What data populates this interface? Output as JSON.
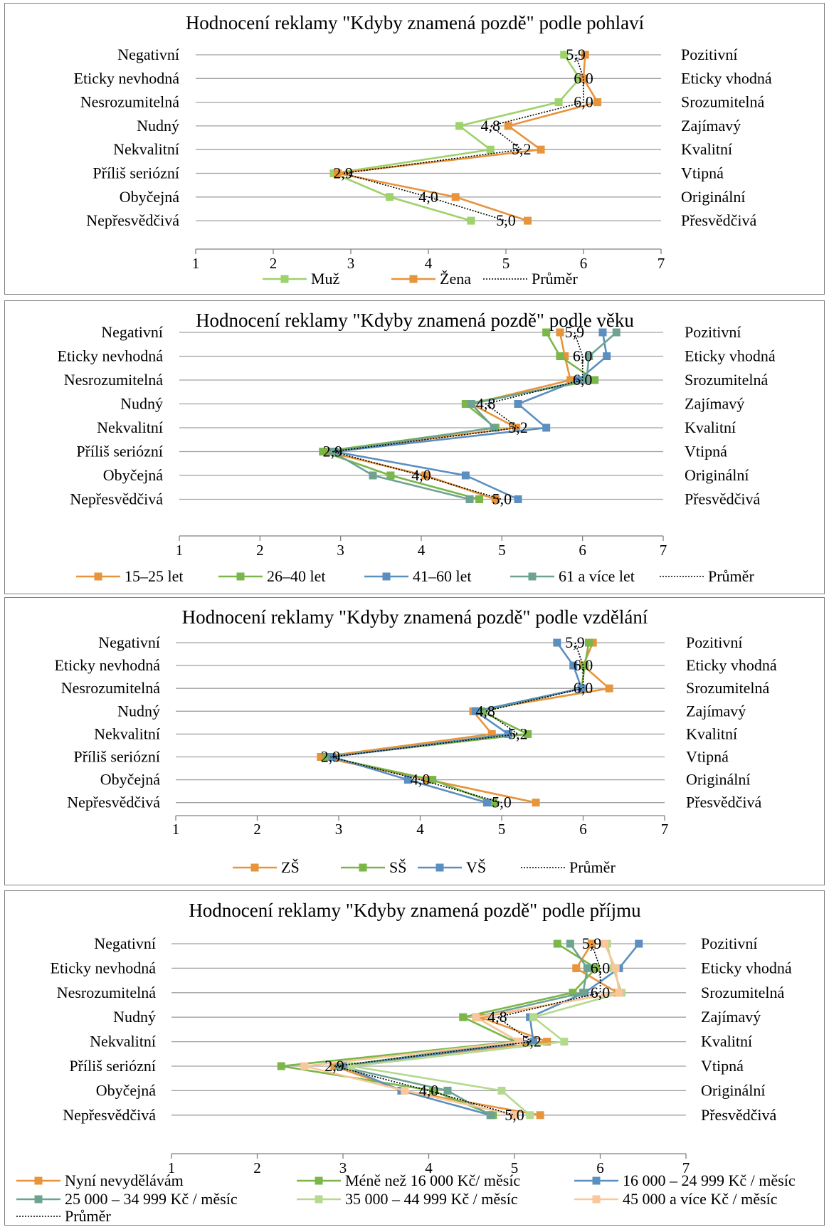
{
  "colors": {
    "orange": "#E7943A",
    "green": "#7AB648",
    "blue": "#5B8FC0",
    "teal": "#6FA391",
    "lightgreen": "#B5D98E",
    "peach": "#F9C79A",
    "lightgreen2": "#9ED26A",
    "grid": "#a0a0a0",
    "mean": "#000000"
  },
  "chart_data": [
    {
      "type": "line",
      "title": "Hodnocení reklamy \"Kdyby znamená pozdě\" podle pohlaví",
      "left_labels": [
        "Negativní",
        "Eticky nevhodná",
        "Nesrozumitelná",
        "Nudný",
        "Nekvalitní",
        "Příliš seriózní",
        "Obyčejná",
        "Nepřesvědčivá"
      ],
      "right_labels": [
        "Pozitivní",
        "Eticky vhodná",
        "Srozumitelná",
        "Zajímavý",
        "Kvalitní",
        "Vtipná",
        "Originální",
        "Přesvědčivá"
      ],
      "x_ticks": [
        "1",
        "2",
        "3",
        "4",
        "5",
        "6",
        "7"
      ],
      "xlim": [
        1,
        7
      ],
      "series": [
        {
          "name": "Muž",
          "color": "lightgreen2",
          "values": [
            5.75,
            5.95,
            5.68,
            4.4,
            4.8,
            2.78,
            3.5,
            4.55
          ]
        },
        {
          "name": "Žena",
          "color": "orange",
          "values": [
            6.02,
            6.0,
            6.18,
            5.03,
            5.45,
            2.83,
            4.35,
            5.28
          ]
        }
      ],
      "mean": {
        "name": "Průměr",
        "values": [
          5.9,
          6.0,
          6.0,
          4.8,
          5.2,
          2.9,
          4.0,
          5.0
        ],
        "labels": [
          "5,9",
          "6,0",
          "6,0",
          "4,8",
          "5,2",
          "2,9",
          "4,0",
          "5,0"
        ]
      }
    },
    {
      "type": "line",
      "title": "Hodnocení reklamy \"Kdyby znamená pozdě\" podle věku",
      "left_labels": [
        "Negativní",
        "Eticky nevhodná",
        "Nesrozumitelná",
        "Nudný",
        "Nekvalitní",
        "Příliš seriózní",
        "Obyčejná",
        "Nepřesvědčivá"
      ],
      "right_labels": [
        "Pozitivní",
        "Eticky vhodná",
        "Srozumitelná",
        "Zajímavý",
        "Kvalitní",
        "Vtipná",
        "Originální",
        "Přesvědčivá"
      ],
      "x_ticks": [
        "1",
        "2",
        "3",
        "4",
        "5",
        "6",
        "7"
      ],
      "xlim": [
        1,
        7
      ],
      "series": [
        {
          "name": "15–25 let",
          "color": "orange",
          "values": [
            5.72,
            5.78,
            5.85,
            4.62,
            5.18,
            2.82,
            4.05,
            4.92
          ]
        },
        {
          "name": "26–40 let",
          "color": "green",
          "values": [
            5.55,
            5.72,
            6.15,
            4.55,
            4.92,
            2.78,
            3.62,
            4.72
          ]
        },
        {
          "name": "41–60 let",
          "color": "blue",
          "values": [
            6.25,
            6.3,
            5.95,
            5.2,
            5.55,
            2.92,
            4.55,
            5.2
          ]
        },
        {
          "name": "61 a více let",
          "color": "teal",
          "values": [
            6.42,
            6.08,
            6.05,
            4.62,
            4.9,
            2.9,
            3.4,
            4.6
          ]
        }
      ],
      "mean": {
        "name": "Průměr",
        "values": [
          5.9,
          6.0,
          6.0,
          4.8,
          5.2,
          2.9,
          4.0,
          5.0
        ],
        "labels": [
          "5,9",
          "6,0",
          "6,0",
          "4,8",
          "5,2",
          "2,9",
          "4,0",
          "5,0"
        ]
      }
    },
    {
      "type": "line",
      "title": "Hodnocení reklamy \"Kdyby znamená pozdě\" podle vzdělání",
      "left_labels": [
        "Negativní",
        "Eticky nevhodná",
        "Nesrozumitelná",
        "Nudný",
        "Nekvalitní",
        "Příliš seriózní",
        "Obyčejná",
        "Nepřesvědčivá"
      ],
      "right_labels": [
        "Pozitivní",
        "Eticky vhodná",
        "Srozumitelná",
        "Zajímavý",
        "Kvalitní",
        "Vtipná",
        "Originální",
        "Přesvědčivá"
      ],
      "x_ticks": [
        "1",
        "2",
        "3",
        "4",
        "5",
        "6",
        "7"
      ],
      "xlim": [
        1,
        7
      ],
      "series": [
        {
          "name": "ZŠ",
          "color": "orange",
          "values": [
            6.12,
            6.0,
            6.32,
            4.65,
            4.88,
            2.78,
            4.1,
            5.42
          ]
        },
        {
          "name": "SŠ",
          "color": "green",
          "values": [
            6.07,
            6.02,
            5.98,
            4.75,
            5.32,
            2.85,
            4.15,
            4.9
          ]
        },
        {
          "name": "VŠ",
          "color": "blue",
          "values": [
            5.68,
            5.88,
            5.98,
            4.68,
            5.08,
            2.92,
            3.85,
            4.82
          ]
        }
      ],
      "mean": {
        "name": "Průměr",
        "values": [
          5.9,
          6.0,
          6.0,
          4.8,
          5.2,
          2.9,
          4.0,
          5.0
        ],
        "labels": [
          "5,9",
          "6,0",
          "6,0",
          "4,8",
          "5,2",
          "2,9",
          "4,0",
          "5,0"
        ]
      }
    },
    {
      "type": "line",
      "title": "Hodnocení reklamy \"Kdyby znamená pozdě\" podle příjmu",
      "left_labels": [
        "Negativní",
        "Eticky nevhodná",
        "Nesrozumitelná",
        "Nudný",
        "Nekvalitní",
        "Příliš seriózní",
        "Obyčejná",
        "Nepřesvědčivá"
      ],
      "right_labels": [
        "Pozitivní",
        "Eticky vhodná",
        "Srozumitelná",
        "Zajímavý",
        "Kvalitní",
        "Vtipná",
        "Originální",
        "Přesvědčivá"
      ],
      "x_ticks": [
        "1",
        "2",
        "3",
        "4",
        "5",
        "6",
        "7"
      ],
      "xlim": [
        1,
        7
      ],
      "series": [
        {
          "name": "Nyní nevydělávám",
          "color": "orange",
          "values": [
            5.9,
            5.72,
            6.2,
            4.6,
            5.38,
            2.9,
            3.7,
            5.3
          ]
        },
        {
          "name": "Méně než 16 000 Kč/ měsíc",
          "color": "green",
          "values": [
            5.5,
            5.95,
            5.68,
            4.4,
            5.0,
            2.28,
            4.05,
            4.75
          ]
        },
        {
          "name": "16 000 – 24 999 Kč / měsíc",
          "color": "blue",
          "values": [
            6.45,
            6.22,
            5.82,
            5.18,
            5.22,
            3.0,
            3.68,
            4.72
          ]
        },
        {
          "name": "25 000 – 34 999 Kč / měsíc",
          "color": "teal",
          "values": [
            5.65,
            5.85,
            5.8,
            4.55,
            5.05,
            2.95,
            4.22,
            4.72
          ]
        },
        {
          "name": "35 000 – 44 999 Kč / měsíc",
          "color": "lightgreen",
          "values": [
            6.08,
            6.15,
            6.25,
            5.22,
            5.58,
            3.1,
            4.85,
            5.18
          ]
        },
        {
          "name": "45 000 a více Kč / měsíc",
          "color": "peach",
          "values": [
            6.05,
            6.18,
            6.22,
            4.55,
            5.05,
            2.55,
            3.72,
            5.0
          ]
        }
      ],
      "mean": {
        "name": "Průměr",
        "values": [
          5.9,
          6.0,
          6.0,
          4.8,
          5.2,
          2.9,
          4.0,
          5.0
        ],
        "labels": [
          "5,9",
          "6,0",
          "6,0",
          "4,8",
          "5,2",
          "2,9",
          "4,0",
          "5,0"
        ]
      }
    }
  ]
}
